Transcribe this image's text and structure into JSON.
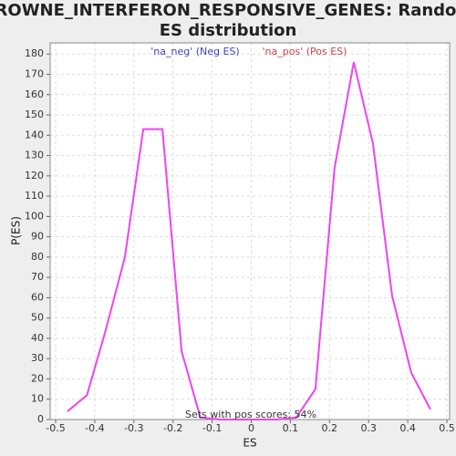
{
  "chart_data": {
    "type": "line",
    "title": "BROWNE_INTERFERON_RESPONSIVE_GENES: Random ES distribution",
    "xlabel": "ES",
    "ylabel": "P(ES)",
    "annotations": [
      "'na_neg' (Neg ES)",
      "'na_pos' (Pos ES)",
      "Sets with pos scores: 54%"
    ],
    "annotation_colors": [
      "#4040c8",
      "#d04040",
      "#333333"
    ],
    "x": [
      -0.47,
      -0.42,
      -0.372,
      -0.323,
      -0.276,
      -0.227,
      -0.178,
      -0.13,
      -0.08,
      -0.031,
      0.017,
      0.066,
      0.115,
      0.164,
      0.213,
      0.262,
      0.311,
      0.36,
      0.409,
      0.458
    ],
    "series": [
      {
        "name": "P(ES)",
        "color": "#ee44ee",
        "values": [
          4,
          12,
          44,
          80,
          143,
          143,
          33.6,
          1,
          0,
          0,
          0,
          0,
          1,
          15,
          124,
          176,
          136,
          61,
          23,
          5
        ]
      }
    ],
    "xlim": [
      -0.514,
      0.507
    ],
    "xticks": [
      -0.5,
      -0.4,
      -0.3,
      -0.2,
      -0.1,
      0.0,
      0.1,
      0.2,
      0.3,
      0.4,
      0.5
    ],
    "ylim": [
      0,
      185.5
    ],
    "yticks": [
      0,
      10,
      20,
      30,
      40,
      50,
      60,
      70,
      80,
      90,
      100,
      110,
      120,
      130,
      140,
      150,
      160,
      170,
      180
    ],
    "grid": true
  }
}
